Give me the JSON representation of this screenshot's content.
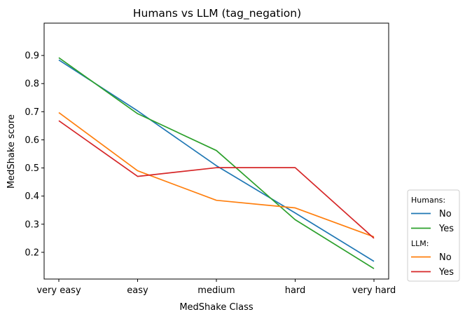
{
  "chart_data": {
    "type": "line",
    "title": "Humans vs LLM (tag_negation)",
    "xlabel": "MedShake Class",
    "ylabel": "MedShake score",
    "categories": [
      "very easy",
      "easy",
      "medium",
      "hard",
      "very hard"
    ],
    "ylim": [
      0.105,
      1.015
    ],
    "yticks": [
      0.2,
      0.3,
      0.4,
      0.5,
      0.6,
      0.7,
      0.8,
      0.9
    ],
    "ytick_labels": [
      "0.2",
      "0.3",
      "0.4",
      "0.5",
      "0.6",
      "0.7",
      "0.8",
      "0.9"
    ],
    "grid": false,
    "legend_position": "lower-right outside",
    "legend_groups": [
      {
        "title": "Humans:",
        "entries": [
          {
            "label": "No",
            "series_index": 0
          },
          {
            "label": "Yes",
            "series_index": 1
          }
        ]
      },
      {
        "title": "LLM:",
        "entries": [
          {
            "label": "No",
            "series_index": 2
          },
          {
            "label": "Yes",
            "series_index": 3
          }
        ]
      }
    ],
    "series": [
      {
        "group": "Humans:",
        "name": "No",
        "color": "#1f77b4",
        "values": [
          0.884,
          0.703,
          0.508,
          0.34,
          0.168
        ]
      },
      {
        "group": "Humans:",
        "name": "Yes",
        "color": "#2ca02c",
        "values": [
          0.892,
          0.693,
          0.562,
          0.316,
          0.142
        ]
      },
      {
        "group": "LLM:",
        "name": "No",
        "color": "#ff7f0e",
        "values": [
          0.697,
          0.49,
          0.385,
          0.358,
          0.255
        ]
      },
      {
        "group": "LLM:",
        "name": "Yes",
        "color": "#d62728",
        "values": [
          0.668,
          0.47,
          0.501,
          0.501,
          0.25
        ]
      }
    ]
  }
}
